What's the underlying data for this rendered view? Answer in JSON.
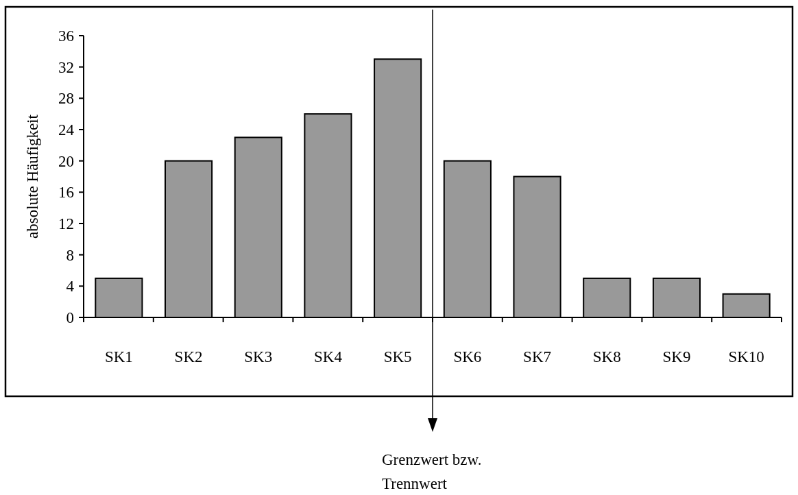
{
  "chart_data": {
    "type": "bar",
    "ylabel": "absolute Häufigkeit",
    "categories": [
      "SK1",
      "SK2",
      "SK3",
      "SK4",
      "SK5",
      "SK6",
      "SK7",
      "SK8",
      "SK9",
      "SK10"
    ],
    "values": [
      5,
      20,
      23,
      26,
      33,
      20,
      18,
      5,
      5,
      3
    ],
    "color": "#999999",
    "ylim": [
      0,
      36
    ],
    "yticks": [
      0,
      4,
      8,
      12,
      16,
      20,
      24,
      28,
      32,
      36
    ],
    "annotations": [
      "Grenzwert bzw. Trennwert"
    ]
  }
}
